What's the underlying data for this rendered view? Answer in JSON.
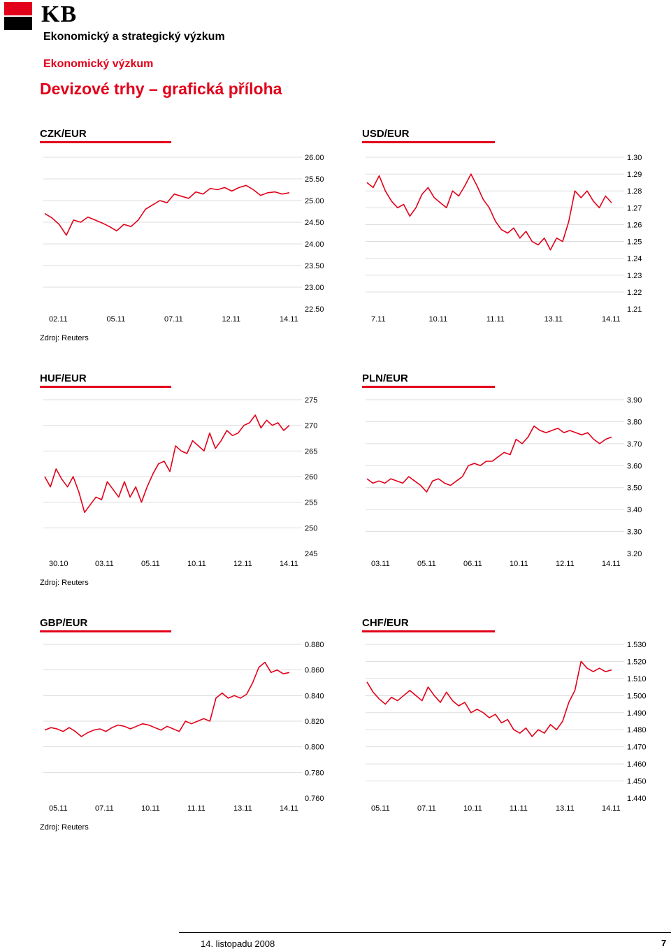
{
  "logo": {
    "text": "KB"
  },
  "header": {
    "line1": "Ekonomický a strategický výzkum",
    "line2": "Ekonomický výzkum",
    "title": "Devizové trhy – grafická příloha"
  },
  "sources": [
    "Zdroj: Reuters",
    "Zdroj: Reuters",
    "Zdroj: Reuters"
  ],
  "footer": {
    "date": "14. listopadu 2008",
    "page": "7"
  },
  "colors": {
    "accent": "#e2001a",
    "series": "#e2001a",
    "grid": "#dddddd"
  },
  "chart_data": [
    {
      "type": "line",
      "title": "CZK/EUR",
      "x_ticks": [
        "02.11",
        "05.11",
        "07.11",
        "12.11",
        "14.11"
      ],
      "y_ticks": [
        "26.00",
        "25.50",
        "25.00",
        "24.50",
        "24.00",
        "23.50",
        "23.00",
        "22.50"
      ],
      "ylim": [
        22.5,
        26.0
      ],
      "grid": "horizontal",
      "series": [
        {
          "values": [
            24.7,
            24.6,
            24.45,
            24.2,
            24.55,
            24.5,
            24.62,
            24.55,
            24.48,
            24.4,
            24.3,
            24.45,
            24.4,
            24.55,
            24.8,
            24.9,
            25.0,
            24.95,
            25.15,
            25.1,
            25.05,
            25.2,
            25.15,
            25.28,
            25.25,
            25.3,
            25.22,
            25.3,
            25.35,
            25.25,
            25.12,
            25.18,
            25.2,
            25.15,
            25.18
          ]
        }
      ]
    },
    {
      "type": "line",
      "title": "USD/EUR",
      "x_ticks": [
        "7.11",
        "10.11",
        "11.11",
        "13.11",
        "14.11"
      ],
      "y_ticks": [
        "1.30",
        "1.29",
        "1.28",
        "1.27",
        "1.26",
        "1.25",
        "1.24",
        "1.23",
        "1.22",
        "1.21"
      ],
      "ylim": [
        1.21,
        1.3
      ],
      "grid": "horizontal",
      "series": [
        {
          "values": [
            1.285,
            1.282,
            1.289,
            1.28,
            1.274,
            1.27,
            1.272,
            1.265,
            1.27,
            1.278,
            1.282,
            1.276,
            1.273,
            1.27,
            1.28,
            1.277,
            1.283,
            1.29,
            1.283,
            1.275,
            1.27,
            1.262,
            1.257,
            1.255,
            1.258,
            1.252,
            1.256,
            1.25,
            1.248,
            1.252,
            1.245,
            1.252,
            1.25,
            1.262,
            1.28,
            1.276,
            1.28,
            1.274,
            1.27,
            1.277,
            1.273
          ]
        }
      ]
    },
    {
      "type": "line",
      "title": "HUF/EUR",
      "x_ticks": [
        "30.10",
        "03.11",
        "05.11",
        "10.11",
        "12.11",
        "14.11"
      ],
      "y_ticks": [
        "275",
        "270",
        "265",
        "260",
        "255",
        "250",
        "245"
      ],
      "ylim": [
        245,
        275
      ],
      "grid": "horizontal",
      "series": [
        {
          "values": [
            260.0,
            258.0,
            261.5,
            259.5,
            258.0,
            260.0,
            257.0,
            253.0,
            254.5,
            256.0,
            255.5,
            259.0,
            257.5,
            256.0,
            259.0,
            256.0,
            258.0,
            255.0,
            258.0,
            260.5,
            262.5,
            263.0,
            261.0,
            266.0,
            265.0,
            264.5,
            267.0,
            266.0,
            265.0,
            268.5,
            265.5,
            267.0,
            269.0,
            268.0,
            268.5,
            270.0,
            270.5,
            272.0,
            269.5,
            271.0,
            270.0,
            270.5,
            269.0,
            270.0
          ]
        }
      ]
    },
    {
      "type": "line",
      "title": "PLN/EUR",
      "x_ticks": [
        "03.11",
        "05.11",
        "06.11",
        "10.11",
        "12.11",
        "14.11"
      ],
      "y_ticks": [
        "3.90",
        "3.80",
        "3.70",
        "3.60",
        "3.50",
        "3.40",
        "3.30",
        "3.20"
      ],
      "ylim": [
        3.2,
        3.9
      ],
      "grid": "horizontal",
      "series": [
        {
          "values": [
            3.54,
            3.52,
            3.53,
            3.52,
            3.54,
            3.53,
            3.52,
            3.55,
            3.53,
            3.51,
            3.48,
            3.53,
            3.54,
            3.52,
            3.51,
            3.53,
            3.55,
            3.6,
            3.61,
            3.6,
            3.62,
            3.62,
            3.64,
            3.66,
            3.65,
            3.72,
            3.7,
            3.73,
            3.78,
            3.76,
            3.75,
            3.76,
            3.77,
            3.75,
            3.76,
            3.75,
            3.74,
            3.75,
            3.72,
            3.7,
            3.72,
            3.73
          ]
        }
      ]
    },
    {
      "type": "line",
      "title": "GBP/EUR",
      "x_ticks": [
        "05.11",
        "07.11",
        "10.11",
        "11.11",
        "13.11",
        "14.11"
      ],
      "y_ticks": [
        "0.880",
        "0.860",
        "0.840",
        "0.820",
        "0.800",
        "0.780",
        "0.760"
      ],
      "ylim": [
        0.76,
        0.88
      ],
      "grid": "horizontal",
      "series": [
        {
          "values": [
            0.813,
            0.815,
            0.814,
            0.812,
            0.815,
            0.812,
            0.808,
            0.811,
            0.813,
            0.814,
            0.812,
            0.815,
            0.817,
            0.816,
            0.814,
            0.816,
            0.818,
            0.817,
            0.815,
            0.813,
            0.816,
            0.814,
            0.812,
            0.82,
            0.818,
            0.82,
            0.822,
            0.82,
            0.838,
            0.842,
            0.838,
            0.84,
            0.838,
            0.841,
            0.85,
            0.862,
            0.866,
            0.858,
            0.86,
            0.857,
            0.858
          ]
        }
      ]
    },
    {
      "type": "line",
      "title": "CHF/EUR",
      "x_ticks": [
        "05.11",
        "07.11",
        "10.11",
        "11.11",
        "13.11",
        "14.11"
      ],
      "y_ticks": [
        "1.530",
        "1.520",
        "1.510",
        "1.500",
        "1.490",
        "1.480",
        "1.470",
        "1.460",
        "1.450",
        "1.440"
      ],
      "ylim": [
        1.44,
        1.53
      ],
      "grid": "horizontal",
      "series": [
        {
          "values": [
            1.508,
            1.502,
            1.498,
            1.495,
            1.499,
            1.497,
            1.5,
            1.503,
            1.5,
            1.497,
            1.505,
            1.5,
            1.496,
            1.502,
            1.497,
            1.494,
            1.496,
            1.49,
            1.492,
            1.49,
            1.487,
            1.489,
            1.484,
            1.486,
            1.48,
            1.478,
            1.481,
            1.476,
            1.48,
            1.478,
            1.483,
            1.48,
            1.485,
            1.496,
            1.503,
            1.52,
            1.516,
            1.514,
            1.516,
            1.514,
            1.515
          ]
        }
      ]
    }
  ]
}
